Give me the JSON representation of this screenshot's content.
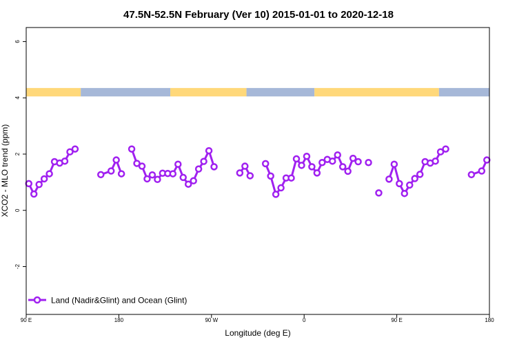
{
  "chart_data": {
    "type": "line",
    "title": "47.5N-52.5N February (Ver 10)   2015-01-01 to 2020-12-18",
    "xlabel": "Longitude (deg E)",
    "ylabel": "XCO2 - MLO trend (ppm)",
    "xlim": [
      90,
      540
    ],
    "ylim": [
      -3.7,
      6.5
    ],
    "x_ticks": [
      {
        "value": 90,
        "label": "90 E"
      },
      {
        "value": 180,
        "label": "180"
      },
      {
        "value": 270,
        "label": "90 W"
      },
      {
        "value": 360,
        "label": "0"
      },
      {
        "value": 450,
        "label": "90 E"
      },
      {
        "value": 540,
        "label": "180"
      }
    ],
    "y_ticks": [
      {
        "value": -2,
        "label": "-2"
      },
      {
        "value": 0,
        "label": "0"
      },
      {
        "value": 2,
        "label": "2"
      },
      {
        "value": 4,
        "label": "4"
      },
      {
        "value": 6,
        "label": "6"
      }
    ],
    "series": [
      {
        "name": "Land (Nadir&Glint) and Ocean (Glint)",
        "color": "#a020f0",
        "points": [
          [
            92.5,
            0.95
          ],
          [
            97.5,
            0.58
          ],
          [
            102.5,
            0.92
          ],
          [
            107.5,
            1.12
          ],
          [
            112.5,
            1.3
          ],
          [
            117.5,
            1.73
          ],
          [
            122.5,
            1.68
          ],
          [
            127.5,
            1.75
          ],
          [
            132.5,
            2.08
          ],
          [
            137.5,
            2.18
          ],
          null,
          [
            162.5,
            1.27
          ],
          [
            172.5,
            1.4
          ],
          [
            177.5,
            1.79
          ],
          [
            182.5,
            1.3
          ],
          null,
          [
            192.5,
            2.18
          ],
          [
            197.5,
            1.67
          ],
          [
            202.5,
            1.57
          ],
          [
            207.5,
            1.12
          ],
          [
            212.5,
            1.26
          ],
          [
            217.5,
            1.1
          ],
          [
            222.5,
            1.32
          ],
          [
            227.5,
            1.31
          ],
          [
            232.5,
            1.3
          ],
          [
            237.5,
            1.64
          ],
          [
            242.5,
            1.17
          ],
          [
            247.5,
            0.93
          ],
          [
            252.5,
            1.05
          ],
          [
            257.5,
            1.47
          ],
          [
            262.5,
            1.74
          ],
          [
            267.5,
            2.12
          ],
          [
            272.5,
            1.55
          ],
          null,
          [
            297.5,
            1.33
          ],
          [
            302.5,
            1.57
          ],
          [
            307.5,
            1.23
          ],
          null,
          [
            322.5,
            1.66
          ],
          [
            327.5,
            1.22
          ],
          [
            332.5,
            0.57
          ],
          [
            337.5,
            0.8
          ],
          [
            342.5,
            1.15
          ],
          [
            347.5,
            1.15
          ],
          [
            352.5,
            1.83
          ],
          [
            357.5,
            1.6
          ],
          [
            362.5,
            1.92
          ],
          [
            367.5,
            1.55
          ],
          [
            372.5,
            1.33
          ],
          [
            377.5,
            1.7
          ],
          [
            382.5,
            1.81
          ],
          [
            387.5,
            1.75
          ],
          [
            392.5,
            1.97
          ],
          [
            397.5,
            1.55
          ],
          [
            402.5,
            1.39
          ],
          [
            407.5,
            1.85
          ],
          [
            412.5,
            1.73
          ],
          null,
          [
            422.5,
            1.7
          ],
          null,
          [
            432.5,
            0.62
          ],
          null,
          [
            442.5,
            1.11
          ],
          [
            447.5,
            1.64
          ],
          [
            452.5,
            0.95
          ],
          [
            457.5,
            0.6
          ],
          [
            462.5,
            0.9
          ],
          [
            467.5,
            1.13
          ],
          [
            472.5,
            1.28
          ],
          [
            477.5,
            1.73
          ],
          [
            482.5,
            1.68
          ],
          [
            487.5,
            1.75
          ],
          [
            492.5,
            2.08
          ],
          [
            497.5,
            2.18
          ],
          null,
          [
            522.5,
            1.27
          ],
          [
            532.5,
            1.4
          ],
          [
            537.5,
            1.79
          ]
        ]
      }
    ],
    "surface_strip": {
      "y_range": [
        4.05,
        4.35
      ],
      "land_color": "#ffd87a",
      "ocean_color": "#a6b8d8",
      "segments": [
        {
          "from": 90,
          "to": 143,
          "kind": "land"
        },
        {
          "from": 143,
          "to": 230,
          "kind": "ocean"
        },
        {
          "from": 230,
          "to": 304,
          "kind": "land"
        },
        {
          "from": 304,
          "to": 370,
          "kind": "ocean"
        },
        {
          "from": 370,
          "to": 491,
          "kind": "land"
        },
        {
          "from": 491,
          "to": 540,
          "kind": "ocean"
        }
      ]
    },
    "legend": {
      "position": "bottom-left",
      "label": "Land (Nadir&Glint) and Ocean (Glint)"
    },
    "grid": false
  }
}
